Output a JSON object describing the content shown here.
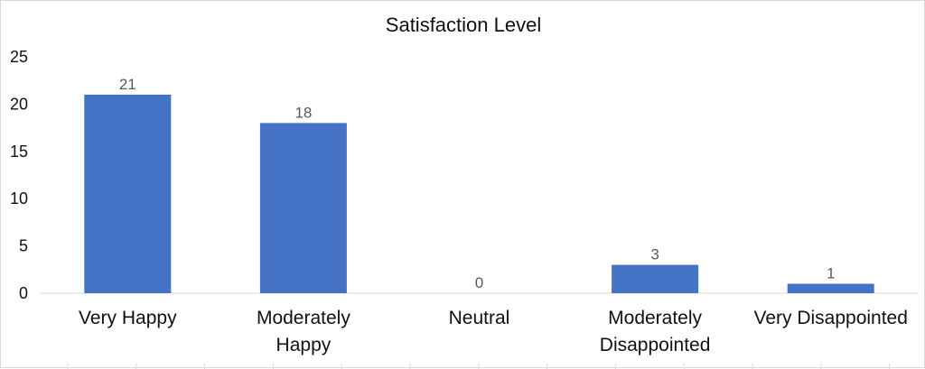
{
  "chart_data": {
    "type": "bar",
    "title": "Satisfaction Level",
    "xlabel": "",
    "ylabel": "",
    "categories": [
      [
        "Very Happy"
      ],
      [
        "Moderately",
        "Happy"
      ],
      [
        "Neutral"
      ],
      [
        "Moderately",
        "Disappointed"
      ],
      [
        "Very Disappointed"
      ]
    ],
    "values": [
      21,
      18,
      0,
      3,
      1
    ],
    "ylim": [
      0,
      25
    ],
    "yticks": [
      0,
      5,
      10,
      15,
      20,
      25
    ],
    "grid": false,
    "legend": "none",
    "bar_color": "#4472C4"
  }
}
